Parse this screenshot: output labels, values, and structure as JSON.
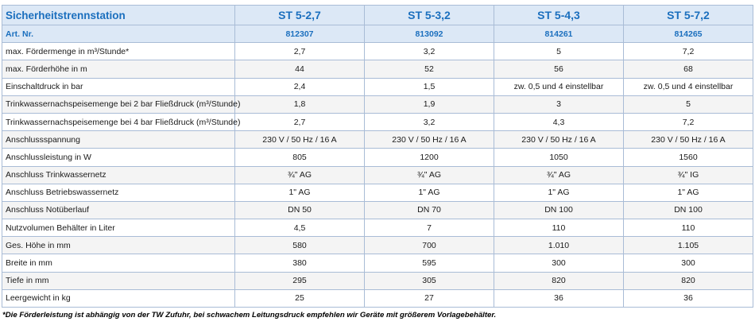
{
  "table": {
    "header": [
      "Sicherheitstrennstation",
      "ST 5-2,7",
      "ST 5-3,2",
      "ST 5-4,3",
      "ST 5-7,2"
    ],
    "art": [
      "Art. Nr.",
      "812307",
      "813092",
      "814261",
      "814265"
    ],
    "rows": [
      [
        "max. Fördermenge in m³/Stunde*",
        "2,7",
        "3,2",
        "5",
        "7,2"
      ],
      [
        "max. Förderhöhe in m",
        "44",
        "52",
        "56",
        "68"
      ],
      [
        "Einschaltdruck in bar",
        "2,4",
        "1,5",
        "zw. 0,5 und 4 einstellbar",
        "zw. 0,5 und 4 einstellbar"
      ],
      [
        "Trinkwassernachspeisemenge bei 2 bar Fließdruck (m³/Stunde)",
        "1,8",
        "1,9",
        "3",
        "5"
      ],
      [
        "Trinkwassernachspeisemenge bei 4 bar Fließdruck (m³/Stunde)",
        "2,7",
        "3,2",
        "4,3",
        "7,2"
      ],
      [
        "Anschlussspannung",
        "230 V / 50 Hz / 16 A",
        "230 V / 50 Hz / 16 A",
        "230 V / 50 Hz / 16 A",
        "230 V / 50 Hz / 16 A"
      ],
      [
        "Anschlussleistung in W",
        "805",
        "1200",
        "1050",
        "1560"
      ],
      [
        "Anschluss Trinkwassernetz",
        "¾\" AG",
        "¾\" AG",
        "¾\" AG",
        "¾\" IG"
      ],
      [
        "Anschluss Betriebswassernetz",
        "1\" AG",
        "1\" AG",
        "1\" AG",
        "1\" AG"
      ],
      [
        "Anschluss Notüberlauf",
        "DN 50",
        "DN 70",
        "DN 100",
        "DN 100"
      ],
      [
        "Nutzvolumen Behälter in Liter",
        "4,5",
        "7",
        "110",
        "110"
      ],
      [
        "Ges. Höhe in mm",
        "580",
        "700",
        "1.010",
        "1.105"
      ],
      [
        "Breite in mm",
        "380",
        "595",
        "300",
        "300"
      ],
      [
        "Tiefe in mm",
        "295",
        "305",
        "820",
        "820"
      ],
      [
        "Leergewicht in kg",
        "25",
        "27",
        "36",
        "36"
      ]
    ]
  },
  "footnote": "*Die Förderleistung ist abhängig von der TW Zufuhr, bei schwachem Leitungsdruck empfehlen wir Geräte mit größerem Vorlagebehälter."
}
